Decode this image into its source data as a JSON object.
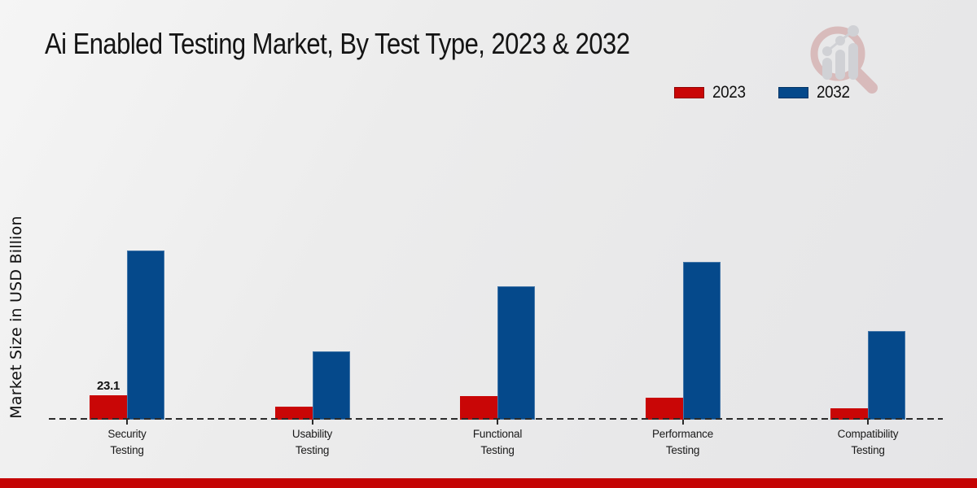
{
  "page": {
    "bottom_strip_color": "#c40404",
    "background_color": "#ebebeb",
    "watermark_icon": "magnifier-growth-chart-logo"
  },
  "chart_data": {
    "type": "bar",
    "title": "Ai Enabled Testing Market, By Test Type, 2023 & 2032",
    "ylabel": "Market Size in USD Billion",
    "xlabel": "",
    "categories": [
      "Security Testing",
      "Usability Testing",
      "Functional Testing",
      "Performance Testing",
      "Compatibility Testing"
    ],
    "series": [
      {
        "name": "2023",
        "color": "#c90606",
        "values": [
          23.1,
          12.6,
          22.4,
          21.0,
          10.8
        ]
      },
      {
        "name": "2032",
        "color": "#05498b",
        "values": [
          160.2,
          64.8,
          126.4,
          149.7,
          83.6
        ]
      }
    ],
    "data_labels": [
      {
        "series": "2023",
        "category": "Security Testing",
        "text": "23.1"
      }
    ],
    "ylim": [
      0,
      185
    ],
    "grid": false,
    "legend_position": "top-right",
    "baseline_style": "dashed",
    "axis_color": "#2b2b2b",
    "text_color": "#1a1a1a"
  }
}
